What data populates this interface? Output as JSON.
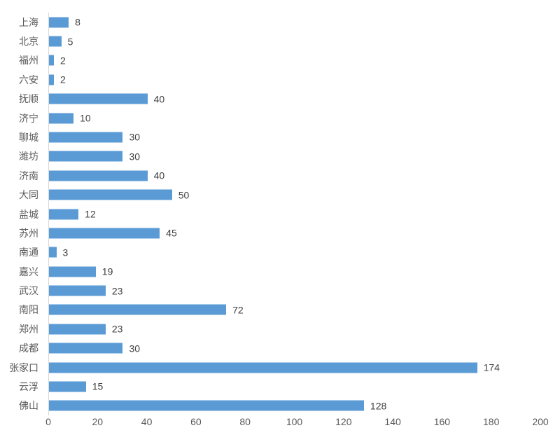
{
  "chart_data": {
    "type": "bar",
    "orientation": "horizontal",
    "title": "",
    "xlabel": "",
    "ylabel": "",
    "categories": [
      "上海",
      "北京",
      "福州",
      "六安",
      "抚顺",
      "济宁",
      "聊城",
      "潍坊",
      "济南",
      "大同",
      "盐城",
      "苏州",
      "南通",
      "嘉兴",
      "武汉",
      "南阳",
      "郑州",
      "成都",
      "张家口",
      "云浮",
      "佛山"
    ],
    "values": [
      8,
      5,
      2,
      2,
      40,
      10,
      30,
      30,
      40,
      50,
      12,
      45,
      3,
      19,
      23,
      72,
      23,
      30,
      174,
      15,
      128
    ],
    "value_labels": [
      "8",
      "5",
      "2",
      "2",
      "40",
      "10",
      "30",
      "30",
      "40",
      "50",
      "12",
      "45",
      "3",
      "19",
      "23",
      "72",
      "23",
      "30",
      "174",
      "15",
      "128"
    ],
    "xlim": [
      0,
      200
    ],
    "x_ticks": [
      "0",
      "20",
      "40",
      "60",
      "80",
      "100",
      "120",
      "140",
      "160",
      "180",
      "200"
    ],
    "grid": false,
    "legend": "none",
    "colors": {
      "bar": "#5B9BD5",
      "category_label": "#595959",
      "value_label": "#404040",
      "tick_label": "#595959",
      "axis_line": "#D9D9D9",
      "background": "#FFFFFF"
    }
  }
}
